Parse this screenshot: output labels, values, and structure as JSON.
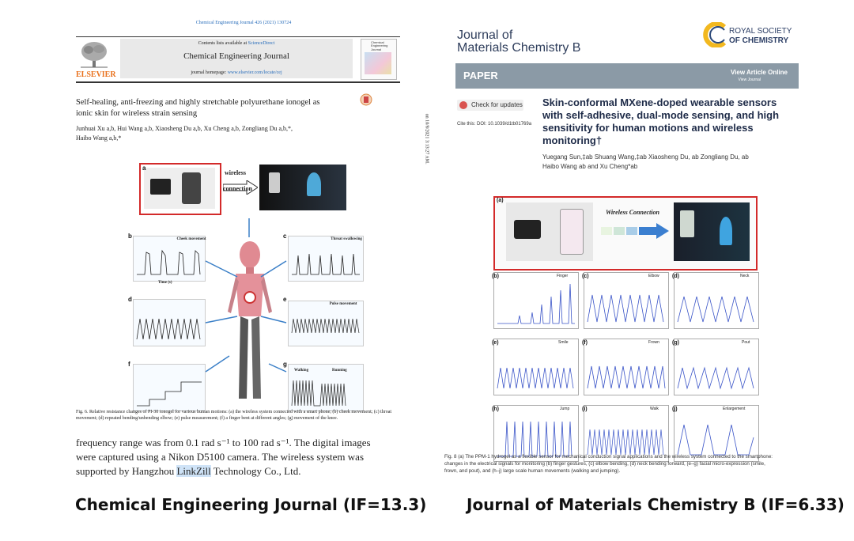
{
  "left": {
    "citation": "Chemical Engineering Journal 426 (2021) 130724",
    "contents_prefix": "Contents lists available at ",
    "contents_link": "ScienceDirect",
    "journal_title": "Chemical Engineering Journal",
    "homepage_prefix": "journal homepage: ",
    "homepage_link": "www.elsevier.com/locate/cej",
    "publisher": "ELSEVIER",
    "cover_title": "Chemical Engineering Journal",
    "check_updates": "Check for updates",
    "article_title_line1": "Self-healing, anti-freezing and highly stretchable polyurethane ionogel as",
    "article_title_line2": "ionic skin for wireless strain sensing",
    "authors_line1": "Junhuai Xu a,b, Hui Wang a,b, Xiaosheng Du a,b, Xu Cheng a,b, Zongliang Du a,b,*,",
    "authors_line2": "Haibo Wang a,b,*",
    "fig_panel_labels": [
      "a",
      "b",
      "c",
      "d",
      "e",
      "f",
      "g"
    ],
    "fig_wireless": "wireless",
    "fig_connection": "connection",
    "fig_cheek": "Cheek movement",
    "fig_throat": "Throat swallowing",
    "fig_pulse": "Pulse movement",
    "fig_walking": "Walking",
    "fig_running": "Running",
    "fig_time": "Time (s)",
    "fig_caption": "Fig. 6. Relative resistance changes of PI-30 ionogel for various human motions: (a) the wireless system connected with a smart phone; (b) cheek movement; (c) throat movement; (d) repeated bending/unbending elbow; (e) pulse measurement; (f) a finger bent at different angles; (g) movement of the knee.",
    "body_line1": "frequency range was from 0.1 rad s⁻¹ to 100 rad s⁻¹. The digital images",
    "body_line2": "were captured using a Nikon D5100 camera. The wireless system was",
    "body_line3_pre": "supported by Hangzhou ",
    "body_line3_hl": "LinkZill",
    "body_line3_post": " Technology Co., Ltd.",
    "bottom_caption": "Chemical Engineering Journal (IF=13.3)"
  },
  "right": {
    "side_note": "on 10/8/2021 3:13:27 AM.",
    "journal_line1": "Journal of",
    "journal_line2": "Materials Chemistry B",
    "rsc_line1": "ROYAL SOCIETY",
    "rsc_line2": "OF CHEMISTRY",
    "paper_label": "PAPER",
    "view_online": "View Article Online",
    "view_journal": "View Journal",
    "check_updates": "Check for updates",
    "cite": "Cite this: DOI: 10.1039/d1tb01769a",
    "title_line1": "Skin-conformal MXene-doped wearable sensors",
    "title_line2": "with self-adhesive, dual-mode sensing, and high",
    "title_line3": "sensitivity for human motions and wireless",
    "title_line4": "monitoring†",
    "authors_line1": "Yuegang Sun,‡ab Shuang Wang,‡ab Xiaosheng Du, ab Zongliang Du, ab",
    "authors_line2": "Haibo Wang ab and Xu Cheng*ab",
    "fig_wireless": "Wireless Connection",
    "panel_labels": [
      "(a)",
      "(b)",
      "(c)",
      "(d)",
      "(e)",
      "(f)",
      "(g)",
      "(h)",
      "(i)",
      "(j)"
    ],
    "panel_titles": [
      "Finger",
      "Elbow",
      "Neck",
      "Smile",
      "Frown",
      "Pout",
      "Jump",
      "Walk",
      "Enlargement"
    ],
    "fig_caption_line1": "Fig. 8  (a) The PPM-1 hydrogel as a flexible sensor for mechanical conduction signal applications and the wireless system connected to the smartphone:",
    "fig_caption_line2": "changes in the electrical signals for monitoring (b) finger gestures, (c) elbow bending, (d) neck bending forward, (e–g) facial micro-expression (smile,",
    "fig_caption_line3": "frown, and pout), and (h–j) large scale human movements (walking and jumping).",
    "bottom_caption": "Journal of Materials Chemistry B (IF=6.33)"
  },
  "colors": {
    "elsevier_orange": "#e9711c",
    "rsc_banner": "#8b9aa6",
    "red_frame": "#d32a2a",
    "plot_blue": "#3b55c8",
    "link_blue": "#2a6ebb"
  }
}
